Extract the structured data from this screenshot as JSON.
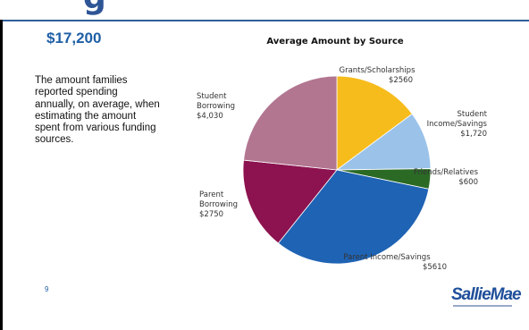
{
  "header": {
    "title_fragment": "g"
  },
  "stat": {
    "value": "$17,200",
    "description": "The amount families reported spending annually, on average, when estimating the amount spent from various funding sources."
  },
  "footer": {
    "page_number": "9",
    "logo": "SallieMae"
  },
  "colors": {
    "accent_blue": "#1f5fa6",
    "rule": "#2f5f9a"
  },
  "chart_data": {
    "type": "pie",
    "title": "Average Amount by Source",
    "total": 17200,
    "slices": [
      {
        "label": "Grants/Scholarships",
        "display_value": "$2560",
        "value": 2560,
        "color": "#f6bc1c"
      },
      {
        "label": "Student Income/Savings",
        "display_value": "$1,720",
        "value": 1720,
        "color": "#9bc3ea"
      },
      {
        "label": "Friends/Relatives",
        "display_value": "$600",
        "value": 600,
        "color": "#2a6a25"
      },
      {
        "label": "Parent Income/Savings",
        "display_value": "$5610",
        "value": 5610,
        "color": "#1f63b4"
      },
      {
        "label": "Parent Borrowing",
        "display_value": "$2750",
        "value": 2750,
        "color": "#8c134f"
      },
      {
        "label": "Student Borrowing",
        "display_value": "$4,030",
        "value": 4030,
        "color": "#b27691"
      }
    ]
  }
}
